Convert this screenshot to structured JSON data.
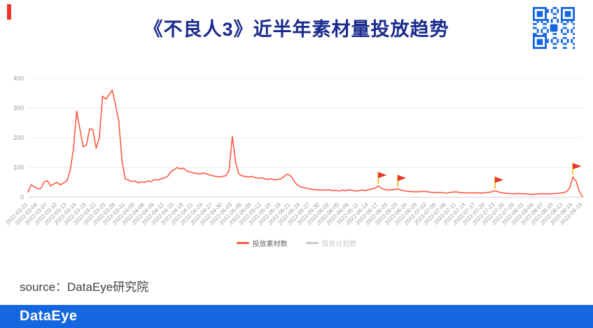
{
  "page": {
    "title": "《不良人3》近半年素材量投放趋势",
    "title_color": "#1a2b8c",
    "accent_red": "#e8352a",
    "footer_blue": "#1567df"
  },
  "qr": {
    "name": "qr-code",
    "color": "#1567df"
  },
  "source": {
    "label": "source：DataEye研究院"
  },
  "footer": {
    "logo": "DataEye"
  },
  "chart_data": {
    "type": "line",
    "title": "",
    "xlabel": "",
    "ylabel": "",
    "ylim": [
      0,
      400
    ],
    "ytick_step": 100,
    "grid": true,
    "legend_position": "bottom",
    "start_date": "2022-03-01",
    "x_labels": [
      "2022-03-01",
      "2022-03-04",
      "2022-03-07",
      "2022-03-10",
      "2022-03-13",
      "2022-03-16",
      "2022-03-19",
      "2022-03-22",
      "2022-03-25",
      "2022-03-28",
      "2022-03-31",
      "2022-04-03",
      "2022-04-06",
      "2022-04-09",
      "2022-04-12",
      "2022-04-15",
      "2022-04-18",
      "2022-04-21",
      "2022-04-24",
      "2022-04-27",
      "2022-04-30",
      "2022-05-03",
      "2022-05-06",
      "2022-05-09",
      "2022-05-12",
      "2022-05-15",
      "2022-05-18",
      "2022-05-21",
      "2022-05-24",
      "2022-05-27",
      "2022-05-30",
      "2022-06-02",
      "2022-06-05",
      "2022-06-08",
      "2022-06-11",
      "2022-06-14",
      "2022-06-17",
      "2022-06-20",
      "2022-06-23",
      "2022-06-26",
      "2022-06-29",
      "2022-07-02",
      "2022-07-05",
      "2022-07-08",
      "2022-07-11",
      "2022-07-14",
      "2022-07-17",
      "2022-07-20",
      "2022-07-23",
      "2022-07-26",
      "2022-07-29",
      "2022-08-01",
      "2022-08-04",
      "2022-08-07",
      "2022-08-10",
      "2022-08-13",
      "2022-08-16",
      "2022-08-19"
    ],
    "series": [
      {
        "name": "投放素材数",
        "color": "#fb5a42",
        "daily_from_start": true,
        "values": [
          18,
          42,
          35,
          28,
          30,
          52,
          55,
          38,
          45,
          50,
          42,
          48,
          55,
          90,
          160,
          290,
          230,
          170,
          175,
          230,
          228,
          165,
          200,
          340,
          330,
          345,
          360,
          310,
          255,
          120,
          62,
          58,
          52,
          55,
          48,
          52,
          50,
          55,
          52,
          60,
          58,
          62,
          65,
          70,
          85,
          92,
          100,
          95,
          98,
          88,
          85,
          82,
          80,
          78,
          82,
          78,
          75,
          72,
          70,
          68,
          70,
          72,
          90,
          205,
          120,
          78,
          72,
          70,
          68,
          70,
          66,
          64,
          65,
          62,
          60,
          62,
          58,
          60,
          62,
          70,
          78,
          72,
          55,
          42,
          35,
          32,
          30,
          28,
          26,
          25,
          24,
          25,
          24,
          25,
          22,
          23,
          21,
          24,
          22,
          25,
          23,
          21,
          22,
          24,
          22,
          25,
          28,
          30,
          38,
          30,
          26,
          24,
          25,
          26,
          28,
          24,
          22,
          20,
          19,
          18,
          18,
          19,
          20,
          19,
          17,
          16,
          15,
          16,
          15,
          14,
          16,
          17,
          18,
          16,
          15,
          15,
          14,
          15,
          14,
          15,
          14,
          15,
          16,
          18,
          22,
          18,
          15,
          14,
          13,
          12,
          12,
          13,
          12,
          12,
          11,
          10,
          10,
          11,
          12,
          12,
          11,
          12,
          12,
          13,
          14,
          15,
          18,
          30,
          68,
          55,
          20,
          2
        ]
      },
      {
        "name": "投放计划数",
        "color": "#c9c9c9",
        "disabled": true,
        "values": []
      }
    ],
    "flags": [
      "2022-06-17",
      "2022-06-23",
      "2022-07-23",
      "2022-08-16"
    ],
    "flag_color": "#e8352a",
    "flag_pole_color": "#f7b500"
  }
}
